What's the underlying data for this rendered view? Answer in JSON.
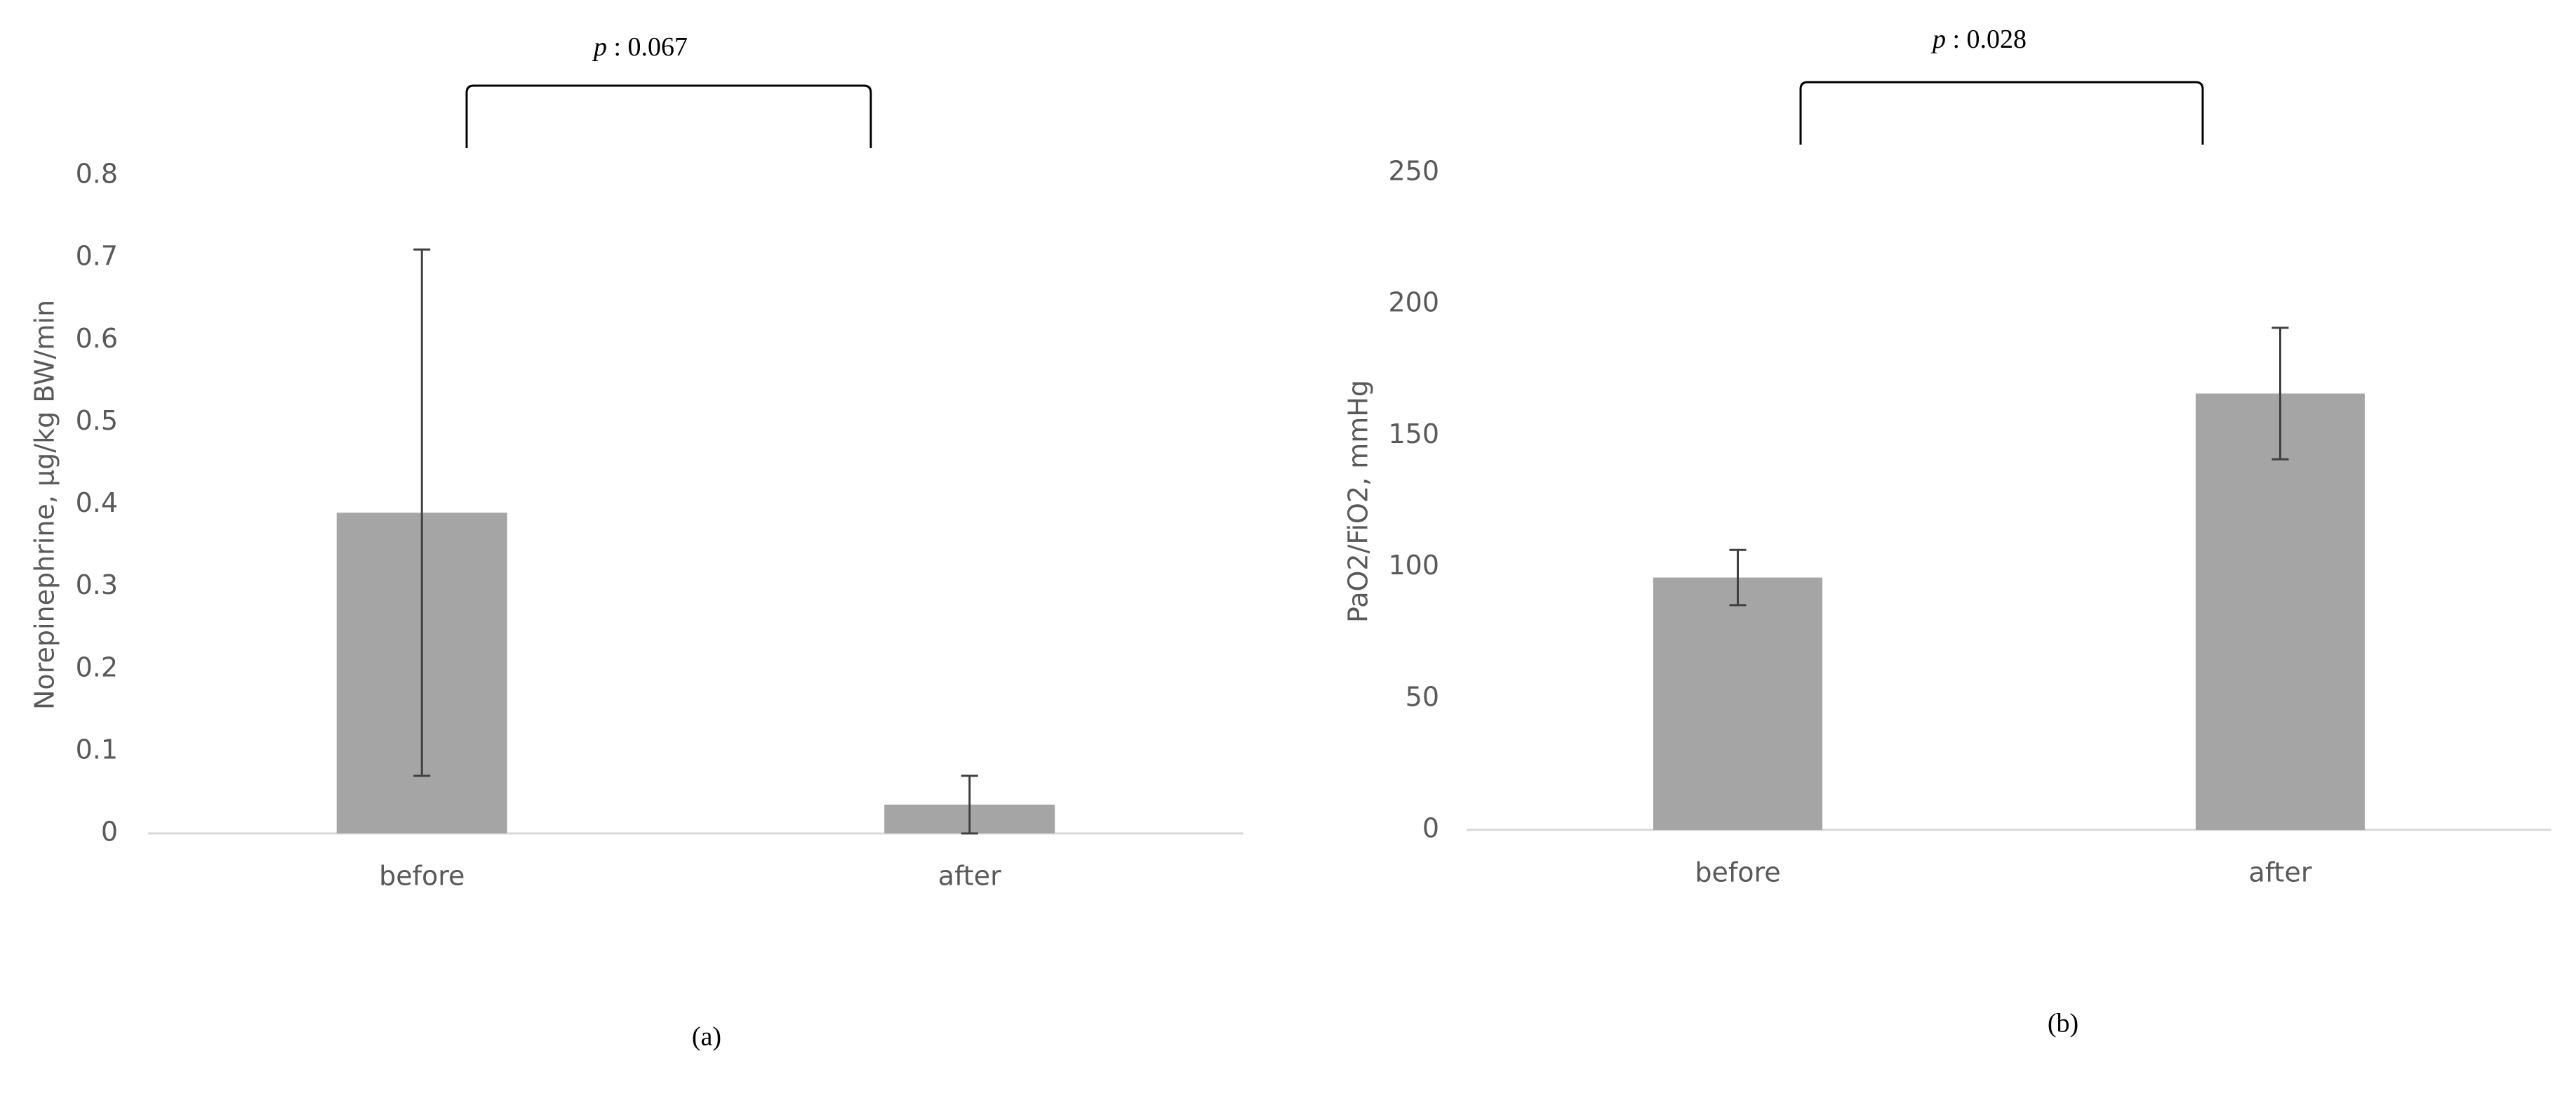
{
  "chart_data": [
    {
      "type": "bar",
      "y_label": "Norepinephrine, µg/kg BW/min",
      "categories": [
        "before",
        "after"
      ],
      "values": [
        0.39,
        0.035
      ],
      "errors": [
        0.32,
        0.035
      ],
      "color": "#a5a5a5",
      "ylim": [
        0,
        0.8
      ],
      "yticks": [
        0,
        0.1,
        0.2,
        0.3,
        0.4,
        0.5,
        0.6,
        0.7,
        0.8
      ],
      "p_symbol": "p",
      "p_text": ": 0.067",
      "caption": "(a)"
    },
    {
      "type": "bar",
      "y_label": "PaO2/FiO2, mmHg",
      "categories": [
        "before",
        "after"
      ],
      "values": [
        96,
        166
      ],
      "errors": [
        10.5,
        25
      ],
      "color": "#a5a5a5",
      "ylim": [
        0,
        250
      ],
      "yticks": [
        0,
        50,
        100,
        150,
        200,
        250
      ],
      "p_symbol": "p",
      "p_text": ": 0.028",
      "caption": "(b)"
    }
  ]
}
